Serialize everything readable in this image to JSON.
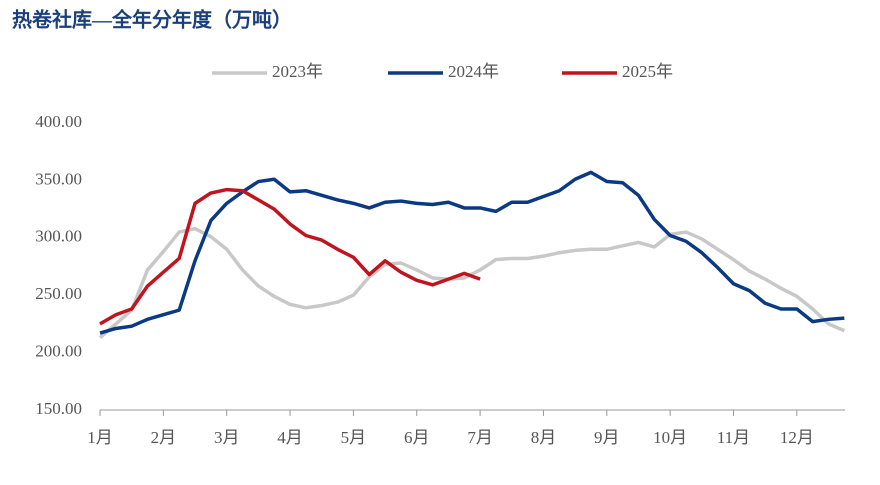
{
  "chart_data": {
    "type": "line",
    "title": "热卷社库—全年分年度（万吨）",
    "x": [
      1,
      1.25,
      1.5,
      1.75,
      2,
      2.25,
      2.5,
      2.75,
      3,
      3.25,
      3.5,
      3.75,
      4,
      4.25,
      4.5,
      4.75,
      5,
      5.25,
      5.5,
      5.75,
      6,
      6.25,
      6.5,
      6.75,
      7,
      7.25,
      7.5,
      7.75,
      8,
      8.25,
      8.5,
      8.75,
      9,
      9.25,
      9.5,
      9.75,
      10,
      10.25,
      10.5,
      10.75,
      11,
      11.25,
      11.5,
      11.75,
      12,
      12.25,
      12.5,
      12.75
    ],
    "series": [
      {
        "name": "2023年",
        "color": "#c8c8c8",
        "values": [
          213,
          225,
          237,
          272,
          288,
          305,
          308,
          301,
          290,
          272,
          258,
          249,
          242,
          239,
          241,
          244,
          250,
          266,
          277,
          278,
          272,
          265,
          264,
          265,
          272,
          281,
          282,
          282,
          284,
          287,
          289,
          290,
          290,
          293,
          296,
          292,
          303,
          305,
          299,
          290,
          281,
          271,
          264,
          256,
          249,
          238,
          225,
          219
        ]
      },
      {
        "name": "2024年",
        "color": "#0b3a82",
        "values": [
          217,
          221,
          223,
          229,
          233,
          237,
          280,
          315,
          330,
          340,
          349,
          351,
          340,
          341,
          337,
          333,
          330,
          326,
          331,
          332,
          330,
          329,
          331,
          326,
          326,
          323,
          331,
          331,
          336,
          341,
          351,
          357,
          349,
          348,
          337,
          316,
          302,
          297,
          287,
          274,
          260,
          254,
          243,
          238,
          238,
          227,
          229,
          230
        ]
      },
      {
        "name": "2025年",
        "color": "#c0141e",
        "values": [
          225,
          233,
          238,
          258,
          270,
          282,
          330,
          339,
          342,
          341,
          333,
          325,
          312,
          302,
          298,
          290,
          283,
          268,
          280,
          270,
          263,
          259,
          264,
          269,
          264,
          null,
          null,
          null,
          null,
          null,
          null,
          null,
          null,
          null,
          null,
          null,
          null,
          null,
          null,
          null,
          null,
          null,
          null,
          null,
          null,
          null,
          null,
          null
        ]
      }
    ],
    "xlim": [
      1,
      12.76
    ],
    "xticks": [
      {
        "value": 1,
        "label": "1月"
      },
      {
        "value": 2,
        "label": "2月"
      },
      {
        "value": 3,
        "label": "3月"
      },
      {
        "value": 4,
        "label": "4月"
      },
      {
        "value": 5,
        "label": "5月"
      },
      {
        "value": 6,
        "label": "6月"
      },
      {
        "value": 7,
        "label": "7月"
      },
      {
        "value": 8,
        "label": "8月"
      },
      {
        "value": 9,
        "label": "9月"
      },
      {
        "value": 10,
        "label": "10月"
      },
      {
        "value": 11,
        "label": "11月"
      },
      {
        "value": 12,
        "label": "12月"
      }
    ],
    "ylim": [
      150,
      400
    ],
    "yticks": [
      {
        "value": 150,
        "label": "150.00"
      },
      {
        "value": 200,
        "label": "200.00"
      },
      {
        "value": 250,
        "label": "250.00"
      },
      {
        "value": 300,
        "label": "300.00"
      },
      {
        "value": 350,
        "label": "350.00"
      },
      {
        "value": 400,
        "label": "400.00"
      }
    ],
    "grid": false,
    "legend": "top"
  }
}
